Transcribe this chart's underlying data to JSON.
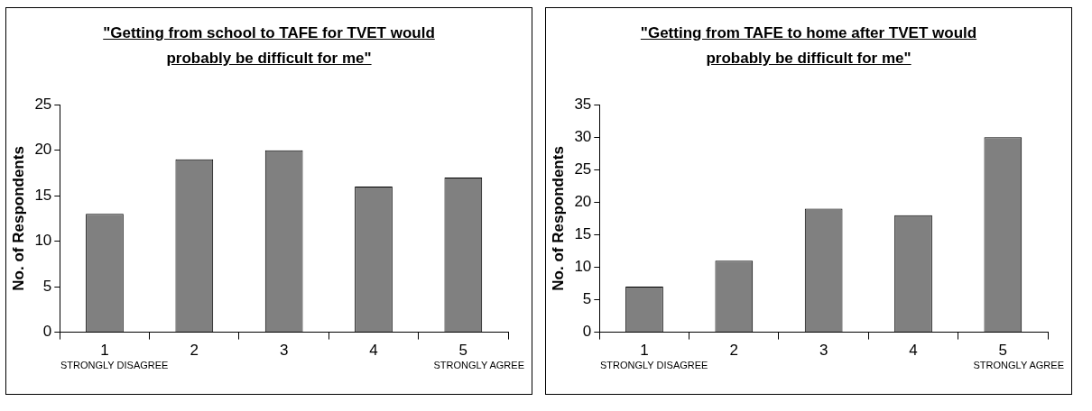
{
  "chart_data": [
    {
      "type": "bar",
      "title": "\"Getting from school to TAFE for TVET would probably be difficult for me\"",
      "ylabel": "No. of Respondents",
      "categories": [
        "1",
        "2",
        "3",
        "4",
        "5"
      ],
      "values": [
        13,
        19,
        20,
        16,
        17
      ],
      "color": "#808080",
      "ylim": [
        0,
        25
      ],
      "yticks": [
        0,
        5,
        10,
        15,
        20,
        25
      ],
      "grid": false,
      "legend": false,
      "annotations": [
        "STRONGLY DISAGREE",
        "STRONGLY AGREE"
      ]
    },
    {
      "type": "bar",
      "title": "\"Getting from TAFE to home after TVET would probably be difficult for me\"",
      "ylabel": "No. of Respondents",
      "categories": [
        "1",
        "2",
        "3",
        "4",
        "5"
      ],
      "values": [
        7,
        11,
        19,
        18,
        30
      ],
      "color": "#808080",
      "ylim": [
        0,
        35
      ],
      "yticks": [
        0,
        5,
        10,
        15,
        20,
        25,
        30,
        35
      ],
      "grid": false,
      "legend": false,
      "annotations": [
        "STRONGLY DISAGREE",
        "STRONGLY AGREE"
      ]
    }
  ]
}
